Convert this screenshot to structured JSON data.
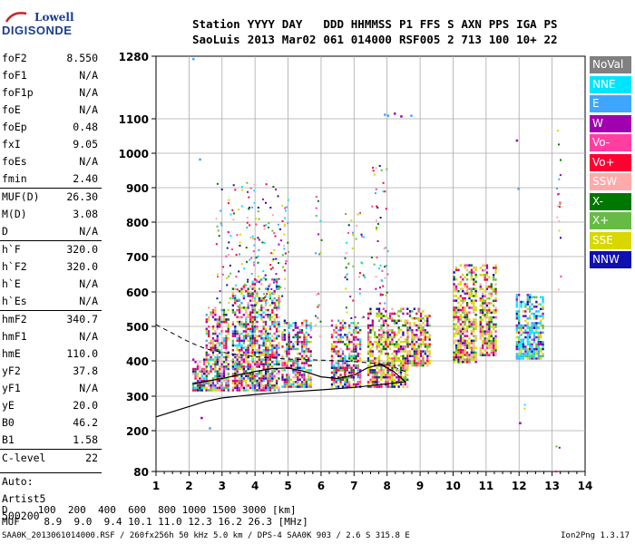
{
  "logo": {
    "line1": "Lowell",
    "line2": "DIGISONDE"
  },
  "header": {
    "labels": [
      "Station",
      "YYYY",
      "DAY",
      "DDD",
      "HHMMSS",
      "P1",
      "FFS",
      "S",
      "AXN",
      "PPS",
      "IGA",
      "PS"
    ],
    "values": [
      "SaoLuis",
      "2013",
      "Mar02",
      "061",
      "014000",
      "RSF",
      "005",
      "2",
      "713",
      "100",
      "10+",
      "22"
    ]
  },
  "params": [
    {
      "name": "foF2",
      "value": "8.550"
    },
    {
      "name": "foF1",
      "value": "N/A"
    },
    {
      "name": "foF1p",
      "value": "N/A"
    },
    {
      "name": "foE",
      "value": "N/A"
    },
    {
      "name": "foEp",
      "value": "0.48"
    },
    {
      "name": "fxI",
      "value": "9.05"
    },
    {
      "name": "foEs",
      "value": "N/A"
    },
    {
      "name": "fmin",
      "value": "2.40"
    },
    {
      "name": "MUF(D)",
      "value": "26.30",
      "sep": true
    },
    {
      "name": "M(D)",
      "value": "3.08"
    },
    {
      "name": "D",
      "value": "N/A"
    },
    {
      "name": "h`F",
      "value": "320.0",
      "sep": true
    },
    {
      "name": "h`F2",
      "value": "320.0"
    },
    {
      "name": "h`E",
      "value": "N/A"
    },
    {
      "name": "h`Es",
      "value": "N/A"
    },
    {
      "name": "hmF2",
      "value": "340.7",
      "sep": true
    },
    {
      "name": "hmF1",
      "value": "N/A"
    },
    {
      "name": "hmE",
      "value": "110.0"
    },
    {
      "name": "yF2",
      "value": "37.8"
    },
    {
      "name": "yF1",
      "value": "N/A"
    },
    {
      "name": "yE",
      "value": "20.0"
    },
    {
      "name": "B0",
      "value": "46.2"
    },
    {
      "name": "B1",
      "value": "1.58"
    },
    {
      "name": "C-level",
      "value": "22",
      "sep": true
    }
  ],
  "auto": {
    "line1": "Auto:",
    "line2": "Artist5",
    "line3": "500200"
  },
  "footer": {
    "d_row": "D     100  200  400  600  800 1000 1500 3000 [km]",
    "muf_row": "MUF    8.9  9.0  9.4 10.1 11.0 12.3 16.2 26.3 [MHz]",
    "info": "SAA0K_2013061014000.RSF / 260fx256h 50 kHz 5.0 km / DPS-4 SAA0K 903 / 2.6 S 315.8 E",
    "version": "Ion2Png 1.3.17"
  },
  "chart_data": {
    "type": "scatter",
    "xlim": [
      1,
      14
    ],
    "ylim": [
      80,
      1280
    ],
    "xticks": [
      "1",
      "2",
      "3",
      "4",
      "5",
      "6",
      "7",
      "8",
      "9",
      "10",
      "11",
      "12",
      "13",
      "14"
    ],
    "yticks": [
      "80",
      "200",
      "300",
      "400",
      "500",
      "600",
      "700",
      "800",
      "900",
      "1000",
      "1100",
      "1280"
    ],
    "legend": [
      {
        "name": "NoVal",
        "color": "#808080"
      },
      {
        "name": "NNE",
        "color": "#00e5ff"
      },
      {
        "name": "E",
        "color": "#3fa6ff"
      },
      {
        "name": "W",
        "color": "#a000b0"
      },
      {
        "name": "Vo-",
        "color": "#ff3fa0"
      },
      {
        "name": "Vo+",
        "color": "#ff0033"
      },
      {
        "name": "SSW",
        "color": "#ffaaaa"
      },
      {
        "name": "X-",
        "color": "#007700"
      },
      {
        "name": "X+",
        "color": "#66bb44"
      },
      {
        "name": "SSE",
        "color": "#d8d800"
      },
      {
        "name": "NNW",
        "color": "#1010b0"
      }
    ],
    "legend_position": "right",
    "echo_columns": [
      {
        "x": [
          2.1,
          2.5
        ],
        "h": [
          320,
          420
        ],
        "mix": "low"
      },
      {
        "x": [
          2.5,
          3.2
        ],
        "h": [
          320,
          560
        ],
        "mix": "low"
      },
      {
        "x": [
          3.3,
          3.9
        ],
        "h": [
          320,
          620
        ],
        "mix": "low"
      },
      {
        "x": [
          3.9,
          4.7
        ],
        "h": [
          320,
          640
        ],
        "mix": "low"
      },
      {
        "x": [
          4.8,
          5.7
        ],
        "h": [
          330,
          520
        ],
        "mix": "low"
      },
      {
        "x": [
          6.3,
          7.2
        ],
        "h": [
          330,
          520
        ],
        "mix": "low"
      },
      {
        "x": [
          7.4,
          8.6
        ],
        "h": [
          330,
          560
        ],
        "mix": "mid"
      },
      {
        "x": [
          8.6,
          9.3
        ],
        "h": [
          390,
          560
        ],
        "mix": "mid"
      },
      {
        "x": [
          10.0,
          10.7
        ],
        "h": [
          400,
          680
        ],
        "mix": "mid"
      },
      {
        "x": [
          10.8,
          11.3
        ],
        "h": [
          420,
          680
        ],
        "mix": "mid"
      },
      {
        "x": [
          11.9,
          12.7
        ],
        "h": [
          410,
          600
        ],
        "mix": "high"
      }
    ],
    "sparse_columns": [
      {
        "x": [
          2.8,
          5.0
        ],
        "h": [
          560,
          920
        ]
      },
      {
        "x": [
          7.5,
          8.0
        ],
        "h": [
          560,
          980
        ]
      },
      {
        "x": [
          6.7,
          7.3
        ],
        "h": [
          520,
          830
        ]
      },
      {
        "x": [
          5.8,
          6.0
        ],
        "h": [
          460,
          900
        ]
      },
      {
        "x": [
          13.1,
          13.25
        ],
        "h": [
          600,
          1120
        ]
      },
      {
        "x": [
          13.05,
          13.2
        ],
        "h": [
          80,
          180
        ]
      },
      {
        "x": [
          12.1,
          12.2
        ],
        "h": [
          220,
          320
        ]
      }
    ],
    "hot_points": [
      [
        7.9,
        1115
      ],
      [
        8.0,
        1112
      ],
      [
        8.2,
        1118
      ],
      [
        8.4,
        1110
      ],
      [
        8.7,
        1112
      ],
      [
        2.1,
        1275
      ],
      [
        2.3,
        985
      ],
      [
        2.35,
        240
      ],
      [
        2.6,
        210
      ],
      [
        11.9,
        1040
      ],
      [
        11.95,
        900
      ],
      [
        12.0,
        225
      ]
    ],
    "profile_lower": {
      "x": [
        1.0,
        1.5,
        2.0,
        2.5,
        3.0,
        4.0,
        5.0,
        6.0,
        7.0,
        7.5,
        8.0,
        8.3,
        8.55
      ],
      "h": [
        240,
        255,
        270,
        285,
        295,
        305,
        312,
        318,
        325,
        330,
        335,
        338,
        341
      ]
    },
    "profile_upper": {
      "x": [
        8.55,
        8.2,
        7.8,
        7.4,
        7.0,
        6.5,
        6.0,
        5.5,
        5.0,
        4.5,
        4.0,
        3.5,
        3.0,
        2.5,
        2.1
      ],
      "h": [
        341,
        370,
        390,
        380,
        360,
        350,
        355,
        370,
        380,
        378,
        370,
        360,
        350,
        342,
        335
      ]
    },
    "profile_dashed": {
      "x": [
        1.0,
        1.5,
        2.0,
        2.5,
        3.0,
        3.5,
        4.0,
        5.0,
        6.0,
        7.0,
        8.0,
        8.55
      ],
      "h": [
        505,
        480,
        455,
        435,
        425,
        418,
        412,
        405,
        402,
        398,
        390,
        370
      ]
    }
  }
}
